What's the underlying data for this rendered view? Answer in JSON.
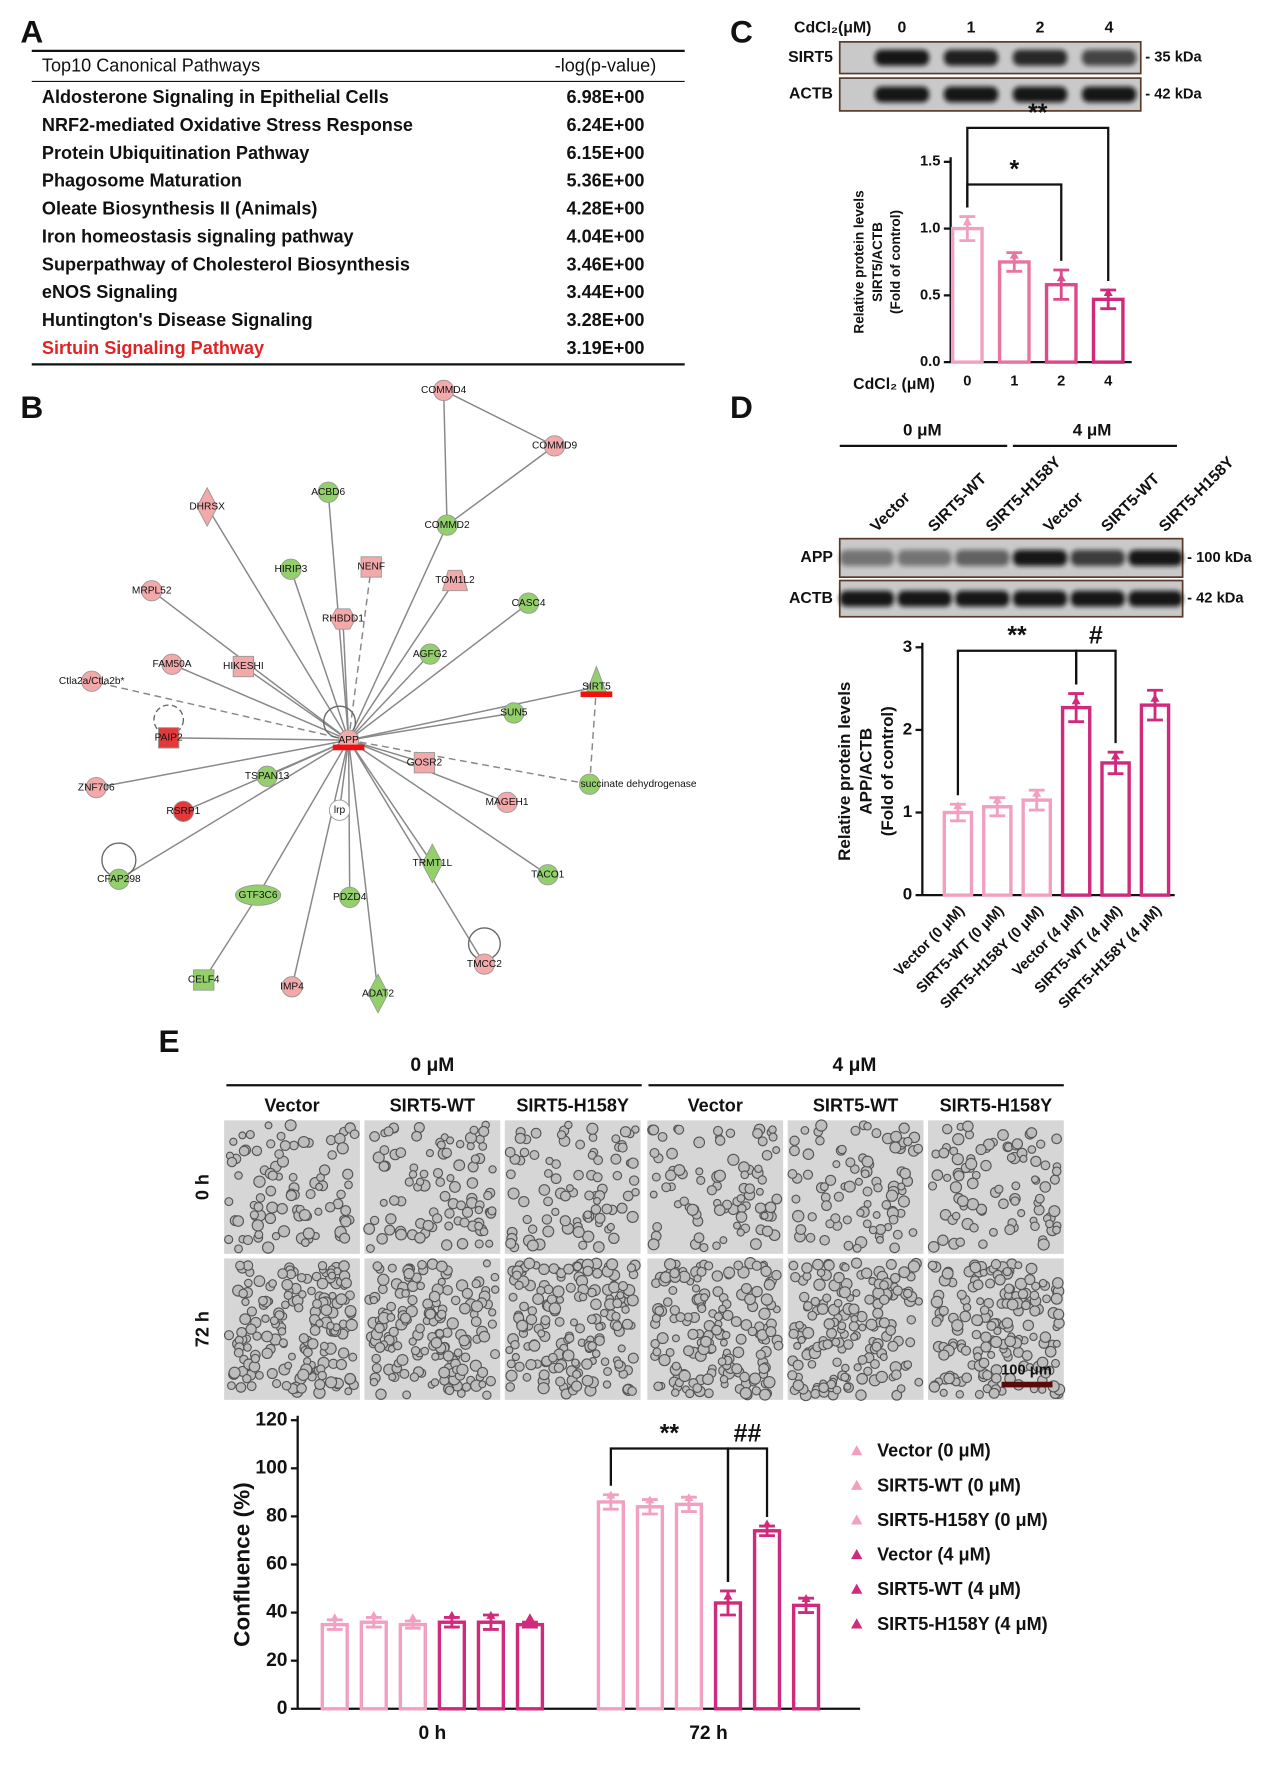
{
  "panel_labels": [
    "A",
    "B",
    "C",
    "D",
    "E"
  ],
  "table": {
    "header": [
      "Top10 Canonical Pathways",
      "-log(p-value)"
    ],
    "rows": [
      [
        "Aldosterone Signaling in Epithelial Cells",
        "6.98E+00"
      ],
      [
        "NRF2-mediated Oxidative Stress Response",
        "6.24E+00"
      ],
      [
        "Protein Ubiquitination Pathway",
        "6.15E+00"
      ],
      [
        "Phagosome Maturation",
        "5.36E+00"
      ],
      [
        "Oleate Biosynthesis II (Animals)",
        "4.28E+00"
      ],
      [
        "Iron homeostasis signaling pathway",
        "4.04E+00"
      ],
      [
        "Superpathway of Cholesterol Biosynthesis",
        "3.46E+00"
      ],
      [
        "eNOS Signaling",
        "3.44E+00"
      ],
      [
        "Huntington's Disease Signaling",
        "3.28E+00"
      ],
      [
        "Sirtuin Signaling Pathway",
        "3.19E+00"
      ]
    ],
    "highlight_row": 9,
    "highlight_color": "#e02424"
  },
  "network": {
    "nodes": [
      "COMMD4",
      "COMMD9",
      "DHRSX",
      "ACBD6",
      "COMMD2",
      "HIRIP3",
      "NENF",
      "MRPL52",
      "TOM1L2",
      "CASC4",
      "RHBDD1",
      "FAM50A",
      "HIKESHI",
      "AGFG2",
      "SIRT5",
      "Ctla2a/Ctla2b*",
      "SUN5",
      "PAIP2",
      "APP",
      "GOSR2",
      "succinate dehydrogenase",
      "ZNF706",
      "TSPAN13",
      "RSRP1",
      "MAGEH1",
      "lrp",
      "TRMT1L",
      "TACO1",
      "CFAP298",
      "GTF3C6",
      "PDZD4",
      "TMCC2",
      "CELF4",
      "IMP4",
      "ADAT2"
    ]
  },
  "blot_c": {
    "header": "CdCl₂(μM)",
    "lanes": [
      "0",
      "1",
      "2",
      "4"
    ],
    "rows": [
      {
        "label": "SIRT5",
        "size": "- 35 kDa"
      },
      {
        "label": "ACTB",
        "size": "- 42 kDa"
      }
    ]
  },
  "blot_d": {
    "groups": [
      "0 μM",
      "4 μM"
    ],
    "lanes": [
      "Vector",
      "SIRT5-WT",
      "SIRT5-H158Y",
      "Vector",
      "SIRT5-WT",
      "SIRT5-H158Y"
    ],
    "rows": [
      {
        "label": "APP",
        "size": "- 100 kDa"
      },
      {
        "label": "ACTB",
        "size": "- 42 kDa"
      }
    ]
  },
  "images_e": {
    "groups": [
      "0 μM",
      "4 μM"
    ],
    "columns": [
      "Vector",
      "SIRT5-WT",
      "SIRT5-H158Y",
      "Vector",
      "SIRT5-WT",
      "SIRT5-H158Y"
    ],
    "rows": [
      "0 h",
      "72 h"
    ],
    "scale_bar": "100 μm"
  },
  "chart_data": [
    {
      "type": "bar",
      "y_label": [
        "Relative protein levels",
        "SIRT5/ACTB",
        "(Fold of control)"
      ],
      "x_label": "CdCl₂ (μM)",
      "categories": [
        "0",
        "1",
        "2",
        "4"
      ],
      "values": [
        1.0,
        0.75,
        0.58,
        0.47
      ],
      "errors": [
        0.09,
        0.07,
        0.11,
        0.07
      ],
      "colors": [
        "#f2a0c2",
        "#e8749f",
        "#db4a8b",
        "#cf2a7c"
      ],
      "ylim": [
        0,
        1.5
      ],
      "yticks": [
        {
          "value": 0,
          "label": "0.0"
        },
        0.5,
        {
          "value": 1,
          "label": "1.0"
        },
        1.5
      ],
      "annotations": [
        {
          "text": "*",
          "from": 0,
          "to": 2
        },
        {
          "text": "**",
          "from": 0,
          "to": 3
        }
      ]
    },
    {
      "type": "bar",
      "y_label": [
        "Relative protein levels",
        "APP/ACTB",
        "(Fold of control)"
      ],
      "categories": [
        "Vector (0 μM)",
        "SIRT5-WT (0 μM)",
        "SIRT5-H158Y (0 μM)",
        "Vector (4 μM)",
        "SIRT5-WT (4 μM)",
        "SIRT5-H158Y (4 μM)"
      ],
      "values": [
        1.0,
        1.07,
        1.15,
        2.27,
        1.6,
        2.3
      ],
      "errors": [
        0.1,
        0.11,
        0.12,
        0.17,
        0.13,
        0.18
      ],
      "colors": [
        "#f2a0c2",
        "#f2a0c2",
        "#f2a0c2",
        "#cf2a7c",
        "#cf2a7c",
        "#cf2a7c"
      ],
      "ylim": [
        0,
        3
      ],
      "yticks": [
        0,
        1,
        2,
        3
      ],
      "annotations": [
        {
          "text": "**",
          "from": 0,
          "to": 3
        },
        {
          "text": "#",
          "from": 3,
          "to": 4
        }
      ]
    },
    {
      "type": "bar",
      "y_label": [
        "Confluence (%)"
      ],
      "categories": [
        "0 h",
        "72 h"
      ],
      "series": [
        {
          "name": "Vector (0 μM)",
          "color": "#f2a0c2",
          "values": [
            35,
            86
          ],
          "errors": [
            2,
            3
          ]
        },
        {
          "name": "SIRT5-WT (0 μM)",
          "color": "#f2a0c2",
          "values": [
            36,
            84
          ],
          "errors": [
            2,
            3
          ]
        },
        {
          "name": "SIRT5-H158Y (0 μM)",
          "color": "#f2a0c2",
          "values": [
            35,
            85
          ],
          "errors": [
            1.5,
            3
          ]
        },
        {
          "name": "Vector (4 μM)",
          "color": "#cf2a7c",
          "values": [
            36,
            44
          ],
          "errors": [
            2,
            5
          ]
        },
        {
          "name": "SIRT5-WT (4 μM)",
          "color": "#cf2a7c",
          "values": [
            36,
            74
          ],
          "errors": [
            3,
            2
          ]
        },
        {
          "name": "SIRT5-H158Y (4 μM)",
          "color": "#cf2a7c",
          "values": [
            35,
            43
          ],
          "errors": [
            1,
            3
          ]
        }
      ],
      "ylim": [
        0,
        120
      ],
      "yticks": [
        0,
        20,
        40,
        60,
        80,
        100,
        120
      ],
      "annotations": [
        {
          "text": "**",
          "category": 1,
          "from": 0,
          "to": 3
        },
        {
          "text": "##",
          "category": 1,
          "from": 3,
          "to": 4
        }
      ]
    }
  ]
}
